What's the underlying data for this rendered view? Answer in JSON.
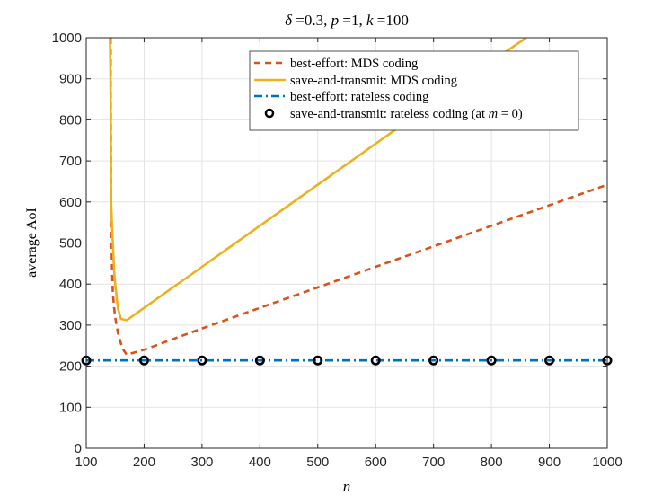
{
  "chart_data": {
    "type": "line",
    "title": "δ =0.3, p =1, k =100",
    "title_parts": {
      "delta_sym": "δ",
      "delta_val": " =0.3, ",
      "p_sym": "p",
      "p_val": " =1, ",
      "k_sym": "k",
      "k_val": " =100"
    },
    "xlabel": "n",
    "ylabel": "average AoI",
    "xlim": [
      100,
      1000
    ],
    "ylim": [
      0,
      1000
    ],
    "xticks": [
      100,
      200,
      300,
      400,
      500,
      600,
      700,
      800,
      900,
      1000
    ],
    "yticks": [
      0,
      100,
      200,
      300,
      400,
      500,
      600,
      700,
      800,
      900,
      1000
    ],
    "grid": true,
    "legend_position": "top-right",
    "series": [
      {
        "name": "best-effort: MDS coding",
        "color": "#D95319",
        "style": "dashed",
        "x": [
          142,
          143,
          144,
          145,
          146,
          148,
          150,
          155,
          160,
          165,
          170,
          200,
          300,
          400,
          500,
          600,
          700,
          800,
          900,
          1000
        ],
        "y": [
          1000,
          600,
          480,
          420,
          380,
          345,
          320,
          280,
          255,
          238,
          228,
          240,
          292,
          342,
          392,
          442,
          492,
          542,
          592,
          642
        ]
      },
      {
        "name": "save-and-transmit: MDS coding",
        "color": "#EDB120",
        "style": "solid",
        "x": [
          141,
          142,
          143,
          144,
          146,
          148,
          150,
          155,
          160,
          170,
          200,
          300,
          400,
          500,
          600,
          700,
          800,
          860
        ],
        "y": [
          1000,
          900,
          600,
          560,
          500,
          440,
          400,
          340,
          315,
          312,
          342,
          442,
          542,
          642,
          742,
          842,
          942,
          1000
        ]
      },
      {
        "name": "best-effort: rateless coding",
        "color": "#0072BD",
        "style": "dashdot",
        "x": [
          100,
          1000
        ],
        "y": [
          214,
          214
        ]
      },
      {
        "name": "save-and-transmit: rateless coding (at m = 0)",
        "legend_parts": {
          "prefix": "save-and-transmit: rateless coding (at ",
          "sym": "m",
          "suffix": " = 0)"
        },
        "color": "#000000",
        "style": "markers",
        "x": [
          100,
          200,
          300,
          400,
          500,
          600,
          700,
          800,
          900,
          1000
        ],
        "y": [
          214,
          214,
          214,
          214,
          214,
          214,
          214,
          214,
          214,
          214
        ]
      }
    ]
  }
}
